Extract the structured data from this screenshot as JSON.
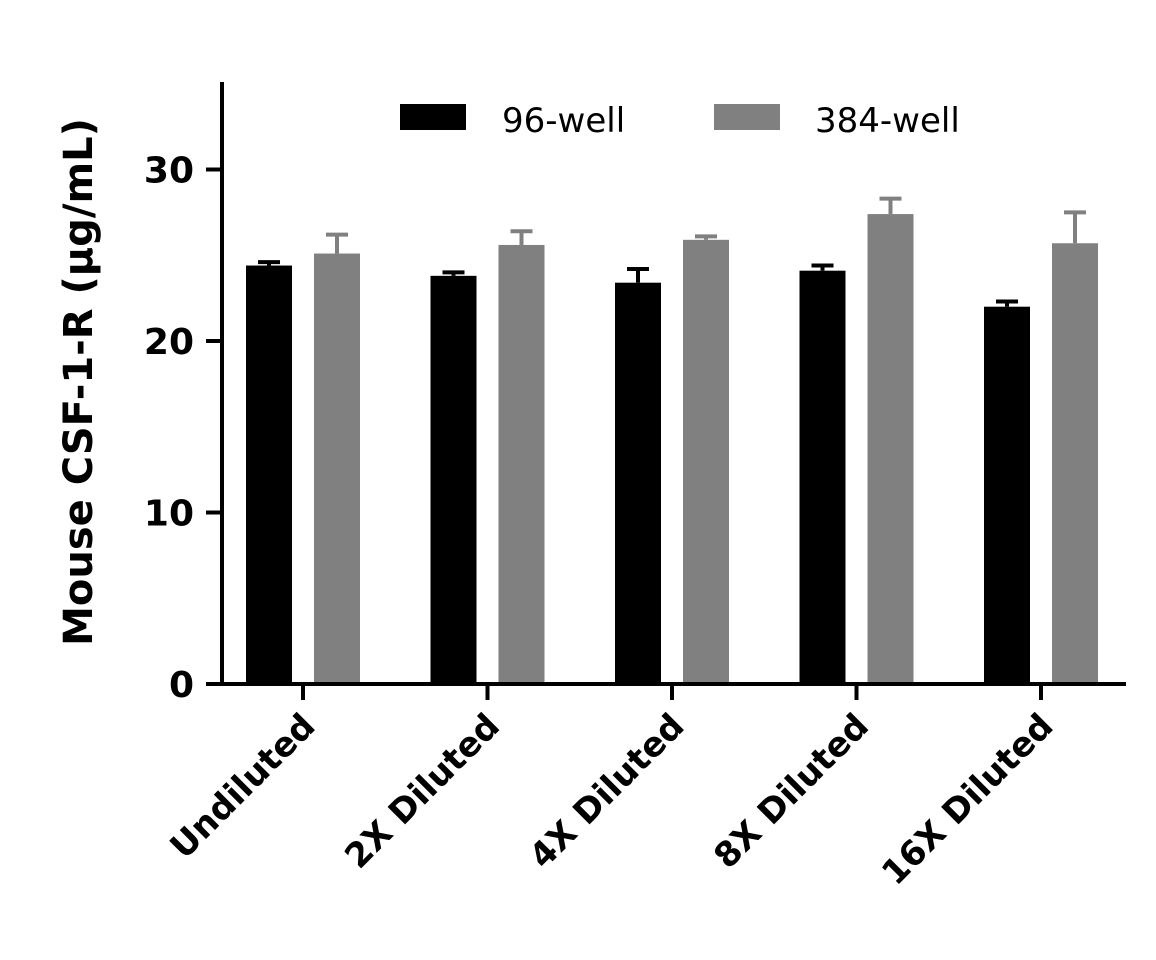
{
  "chart_data": {
    "type": "bar",
    "title": "",
    "xlabel": "",
    "ylabel": "Mouse CSF-1-R (µg/mL)",
    "ylim": [
      0,
      35
    ],
    "yticks": [
      0,
      10,
      20,
      30
    ],
    "grid": false,
    "legend_position": "top-center",
    "categories": [
      "Undiluted",
      "2X Diluted",
      "4X Diluted",
      "8X Diluted",
      "16X Diluted"
    ],
    "series": [
      {
        "name": "96-well",
        "color": "#000000",
        "values": [
          24.4,
          23.8,
          23.4,
          24.1,
          22.0
        ],
        "errors": [
          0.2,
          0.2,
          0.8,
          0.3,
          0.3
        ]
      },
      {
        "name": "384-well",
        "color": "#808080",
        "values": [
          25.1,
          25.6,
          25.9,
          27.4,
          25.7
        ],
        "errors": [
          1.1,
          0.8,
          0.2,
          0.9,
          1.8
        ]
      }
    ]
  }
}
